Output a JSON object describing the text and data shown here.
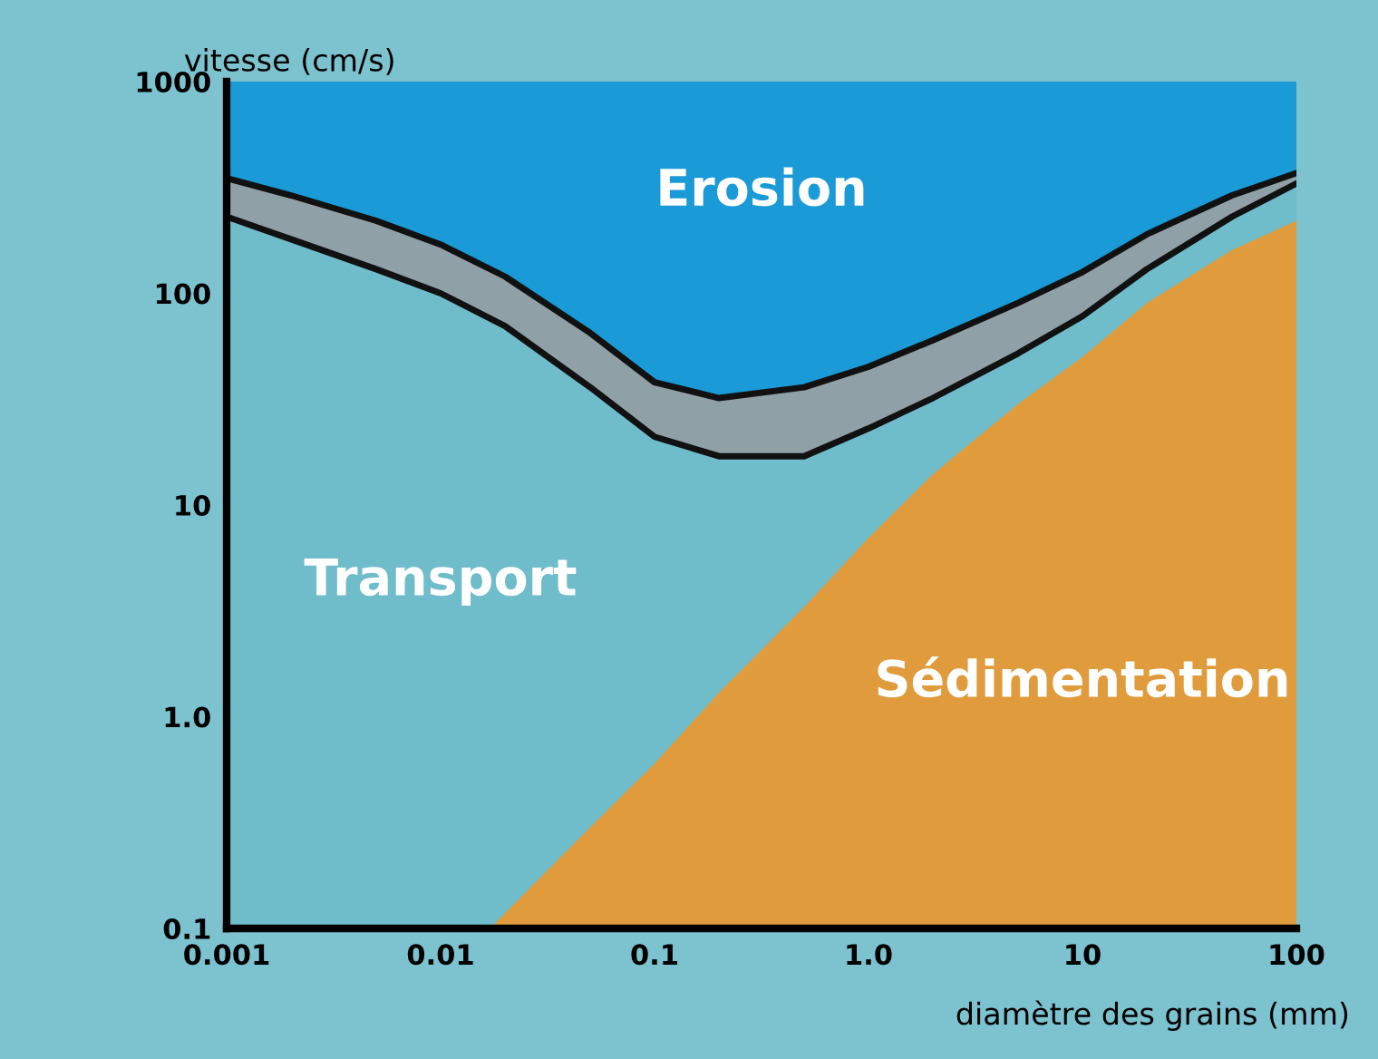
{
  "chart_data": {
    "type": "area",
    "xlabel": "diamètre des grains (mm)",
    "ylabel": "vitesse (cm/s)",
    "log": "xy",
    "x": [
      0.001,
      0.002,
      0.005,
      0.01,
      0.02,
      0.05,
      0.1,
      0.2,
      0.5,
      1,
      2,
      5,
      10,
      20,
      50,
      100
    ],
    "series": [
      {
        "color": "#1a9ad6",
        "values": [
          1000,
          1000,
          1000,
          1000,
          1000,
          1000,
          1000,
          1000,
          1000,
          1000,
          1000,
          1000,
          1000,
          1000,
          1000,
          1000
        ]
      },
      {
        "color": "#8fa0a6",
        "line_style": "solid",
        "values": [
          350,
          290,
          220,
          170,
          120,
          65,
          38,
          32,
          36,
          45,
          60,
          90,
          126,
          190,
          290,
          370
        ]
      },
      {
        "color": "#6fbccb",
        "line_style": "solid",
        "values": [
          230,
          180,
          130,
          100,
          70,
          36,
          21,
          17,
          17,
          23,
          32,
          52,
          78,
          130,
          230,
          330
        ]
      },
      {
        "color": "#e09c3c",
        "x": [
          0.017,
          0.05,
          0.1,
          0.2,
          0.5,
          1,
          2,
          5,
          10,
          20,
          50,
          100
        ],
        "values": [
          0.1,
          0.3,
          0.6,
          1.3,
          3.3,
          7,
          14,
          30,
          50,
          90,
          160,
          220
        ]
      }
    ],
    "xlim": [
      0.001,
      100
    ],
    "ylim": [
      0.1,
      1000
    ],
    "xticks": [
      0.001,
      0.01,
      0.1,
      {
        "value": 1,
        "label": "1.0"
      },
      10,
      100
    ],
    "yticks": [
      0.1,
      {
        "value": 1,
        "label": "1.0"
      },
      10,
      100,
      1000
    ],
    "annotations": [
      "Erosion",
      "Transport",
      "Sédimentation"
    ]
  }
}
